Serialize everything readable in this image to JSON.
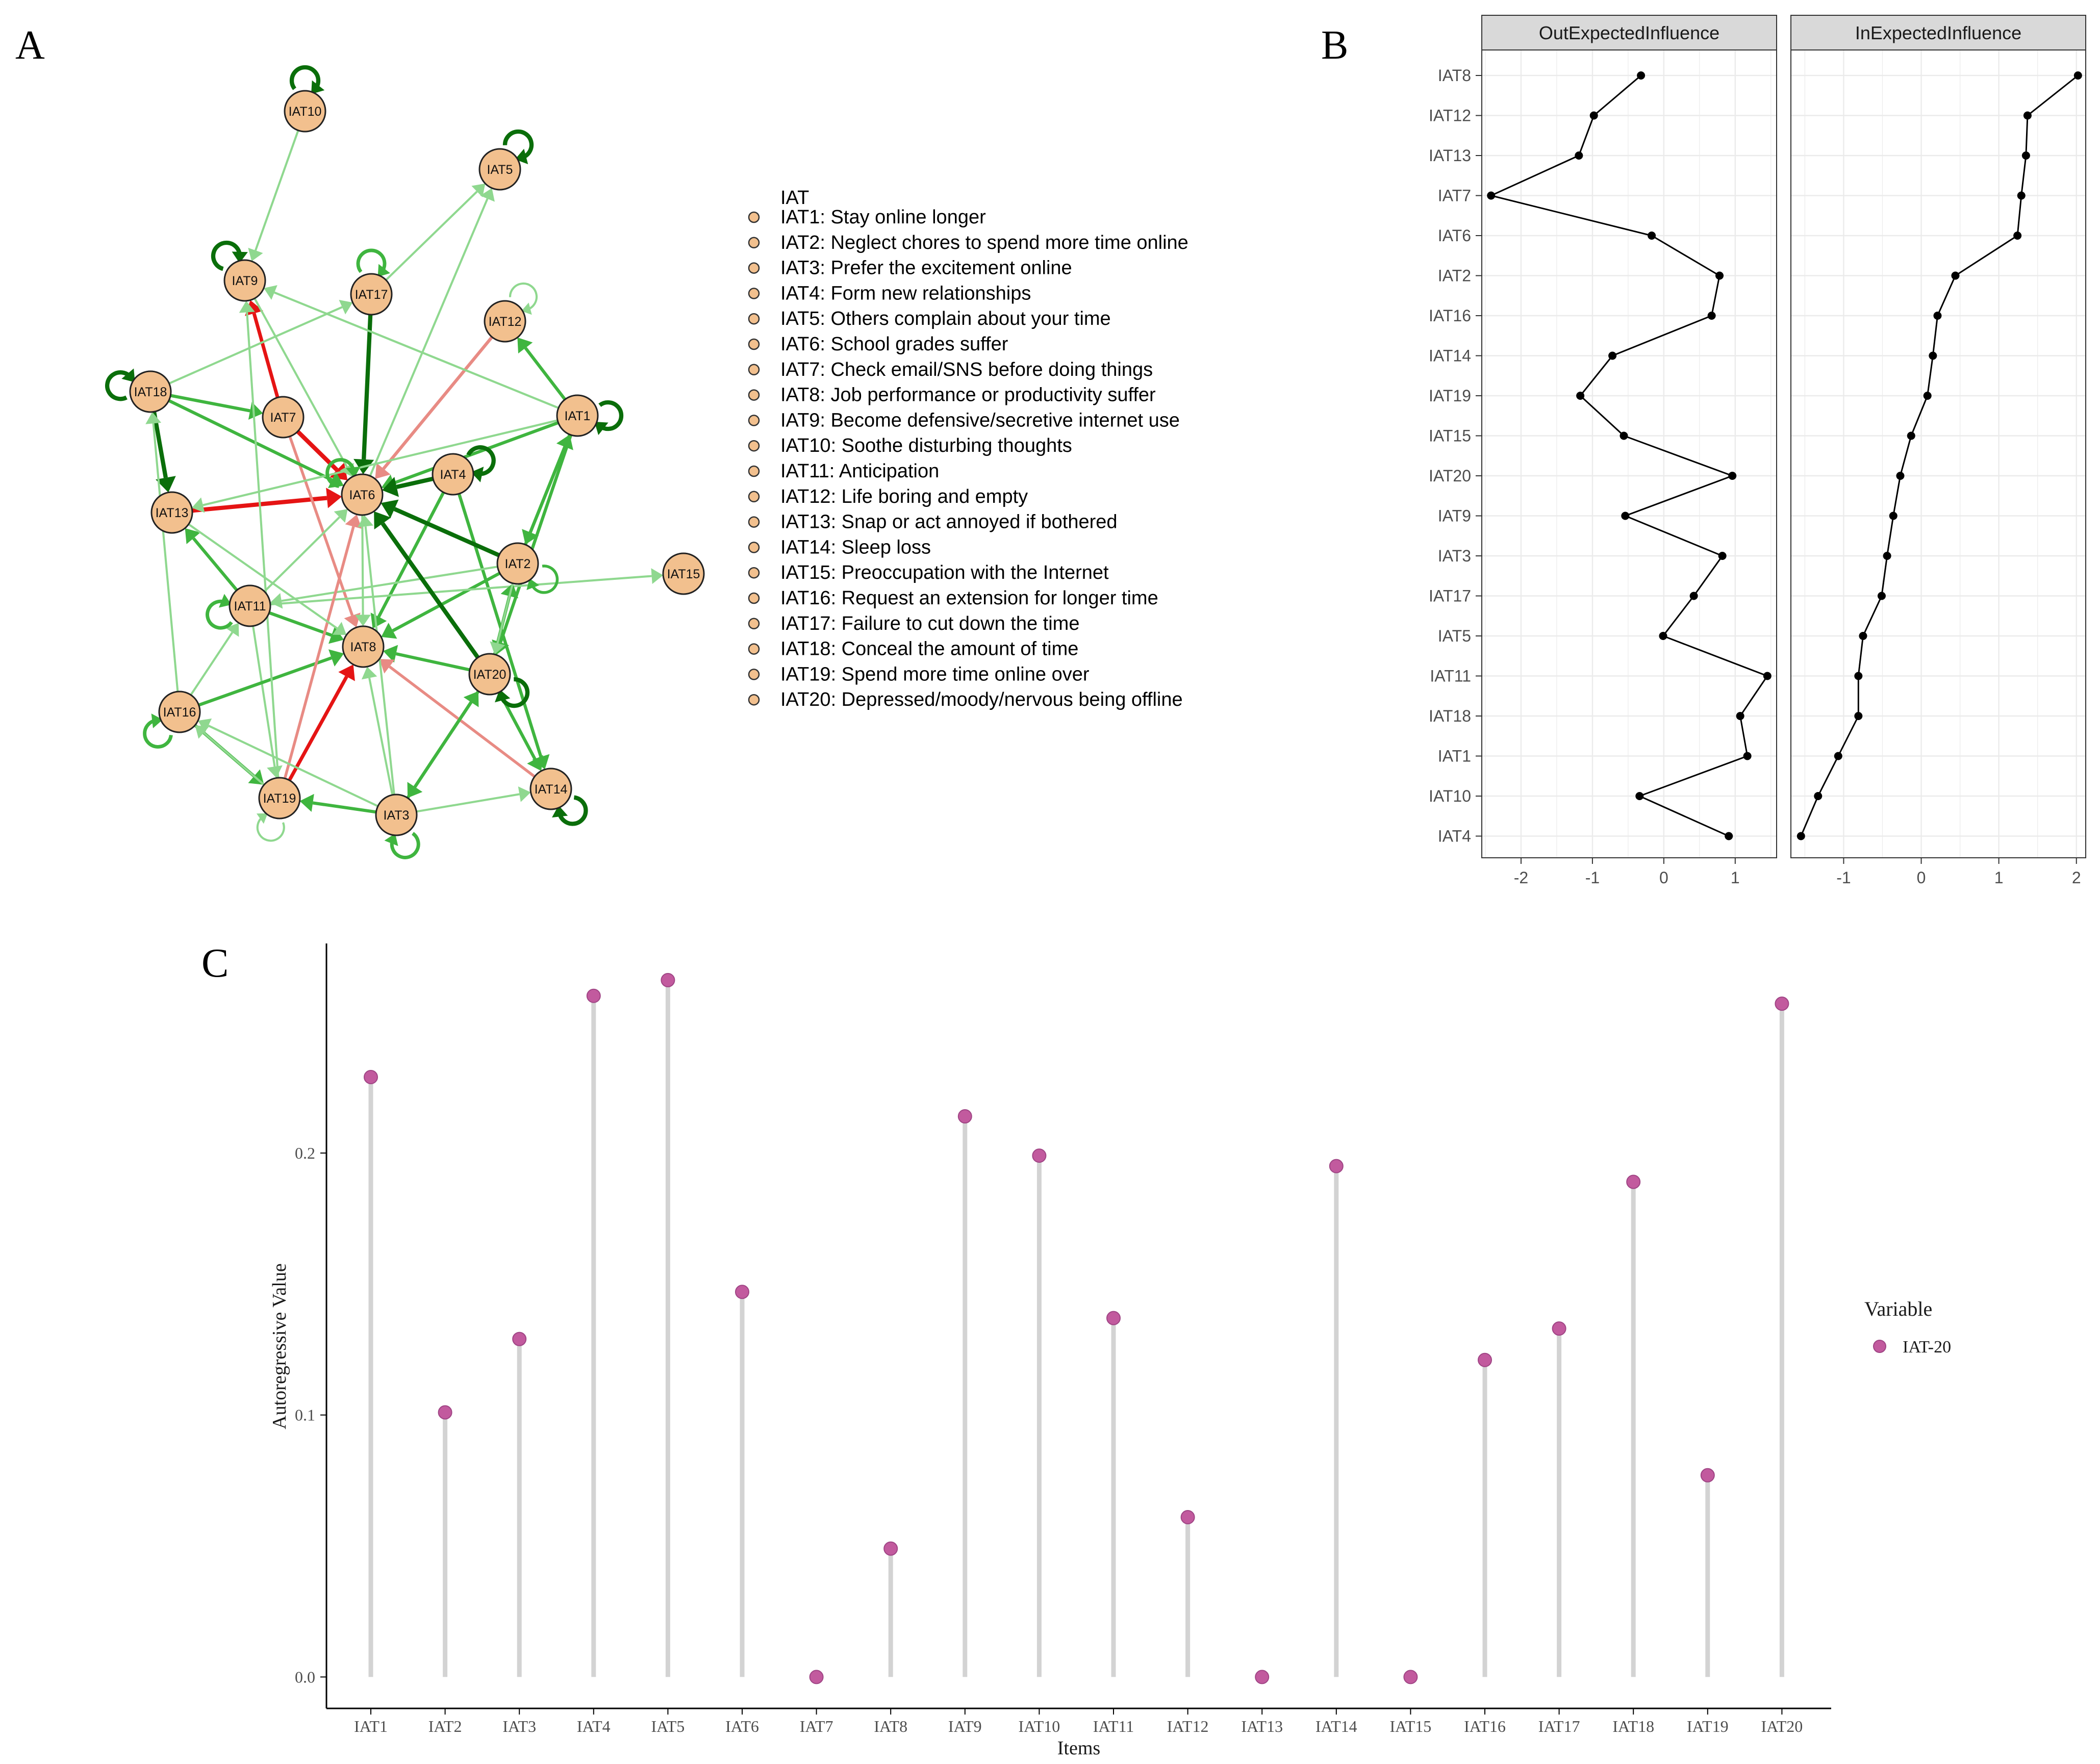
{
  "panels": {
    "a": "A",
    "b": "B",
    "c": "C"
  },
  "network": {
    "legend_title": "IAT",
    "legend_items": [
      "IAT1: Stay online longer",
      "IAT2: Neglect chores to spend more time online",
      "IAT3: Prefer the excitement online",
      "IAT4: Form new relationships",
      "IAT5: Others complain about your time",
      "IAT6: School grades suffer",
      "IAT7: Check email/SNS before doing things",
      "IAT8: Job performance or productivity suffer",
      "IAT9: Become defensive/secretive internet use",
      "IAT10: Soothe disturbing thoughts",
      "IAT11: Anticipation",
      "IAT12: Life boring and empty",
      "IAT13: Snap or act annoyed if bothered",
      "IAT14: Sleep loss",
      "IAT15: Preoccupation with the Internet",
      "IAT16: Request an extension for longer time",
      "IAT17: Failure to cut down the time",
      "IAT18: Conceal the amount of time",
      "IAT19: Spend more time online over",
      "IAT20: Depressed/moody/nervous being offline"
    ],
    "nodes": [
      "IAT1",
      "IAT2",
      "IAT3",
      "IAT4",
      "IAT5",
      "IAT6",
      "IAT7",
      "IAT8",
      "IAT9",
      "IAT10",
      "IAT11",
      "IAT12",
      "IAT13",
      "IAT14",
      "IAT15",
      "IAT16",
      "IAT17",
      "IAT18",
      "IAT19",
      "IAT20"
    ],
    "colors": {
      "node_fill": "#f2c08e",
      "positive_strong": "#0a6e0a",
      "positive_mid": "#3fb53f",
      "positive_weak": "#8fd88f",
      "negative_strong": "#e51414",
      "negative_weak": "#e88b84"
    },
    "edges": [
      {
        "from": "IAT10",
        "to": "IAT9",
        "weight": 0.3
      },
      {
        "from": "IAT7",
        "to": "IAT6",
        "weight": -0.9
      },
      {
        "from": "IAT13",
        "to": "IAT6",
        "weight": -0.9
      },
      {
        "from": "IAT7",
        "to": "IAT9",
        "weight": -0.7
      },
      {
        "from": "IAT7",
        "to": "IAT8",
        "weight": -0.5
      },
      {
        "from": "IAT17",
        "to": "IAT6",
        "weight": 0.9
      },
      {
        "from": "IAT12",
        "to": "IAT6",
        "weight": -0.6
      },
      {
        "from": "IAT18",
        "to": "IAT13",
        "weight": 0.9
      },
      {
        "from": "IAT18",
        "to": "IAT7",
        "weight": 0.6
      },
      {
        "from": "IAT18",
        "to": "IAT6",
        "weight": 0.6
      },
      {
        "from": "IAT18",
        "to": "IAT17",
        "weight": 0.3
      },
      {
        "from": "IAT1",
        "to": "IAT12",
        "weight": 0.6
      },
      {
        "from": "IAT1",
        "to": "IAT9",
        "weight": 0.3
      },
      {
        "from": "IAT1",
        "to": "IAT6",
        "weight": 0.6
      },
      {
        "from": "IAT1",
        "to": "IAT2",
        "weight": 0.6
      },
      {
        "from": "IAT2",
        "to": "IAT1",
        "weight": 0.6
      },
      {
        "from": "IAT1",
        "to": "IAT20",
        "weight": 0.6
      },
      {
        "from": "IAT4",
        "to": "IAT6",
        "weight": 0.9
      },
      {
        "from": "IAT4",
        "to": "IAT8",
        "weight": 0.6
      },
      {
        "from": "IAT4",
        "to": "IAT14",
        "weight": 0.6
      },
      {
        "from": "IAT17",
        "to": "IAT5",
        "weight": 0.3
      },
      {
        "from": "IAT6",
        "to": "IAT5",
        "weight": 0.3
      },
      {
        "from": "IAT2",
        "to": "IAT6",
        "weight": 0.9
      },
      {
        "from": "IAT2",
        "to": "IAT8",
        "weight": 0.6
      },
      {
        "from": "IAT2",
        "to": "IAT11",
        "weight": 0.3
      },
      {
        "from": "IAT11",
        "to": "IAT15",
        "weight": 0.3
      },
      {
        "from": "IAT20",
        "to": "IAT6",
        "weight": 0.9
      },
      {
        "from": "IAT20",
        "to": "IAT8",
        "weight": 0.6
      },
      {
        "from": "IAT20",
        "to": "IAT2",
        "weight": 0.6
      },
      {
        "from": "IAT20",
        "to": "IAT14",
        "weight": 0.6
      },
      {
        "from": "IAT20",
        "to": "IAT3",
        "weight": 0.6
      },
      {
        "from": "IAT14",
        "to": "IAT8",
        "weight": -0.5
      },
      {
        "from": "IAT11",
        "to": "IAT13",
        "weight": 0.6
      },
      {
        "from": "IAT11",
        "to": "IAT8",
        "weight": 0.6
      },
      {
        "from": "IAT11",
        "to": "IAT6",
        "weight": 0.3
      },
      {
        "from": "IAT11",
        "to": "IAT19",
        "weight": 0.3
      },
      {
        "from": "IAT16",
        "to": "IAT11",
        "weight": 0.3
      },
      {
        "from": "IAT16",
        "to": "IAT8",
        "weight": 0.6
      },
      {
        "from": "IAT16",
        "to": "IAT19",
        "weight": 0.6
      },
      {
        "from": "IAT16",
        "to": "IAT18",
        "weight": 0.3
      },
      {
        "from": "IAT19",
        "to": "IAT16",
        "weight": 0.3
      },
      {
        "from": "IAT19",
        "to": "IAT9",
        "weight": 0.3
      },
      {
        "from": "IAT19",
        "to": "IAT6",
        "weight": -0.5
      },
      {
        "from": "IAT19",
        "to": "IAT8",
        "weight": -0.7
      },
      {
        "from": "IAT3",
        "to": "IAT19",
        "weight": 0.6
      },
      {
        "from": "IAT3",
        "to": "IAT14",
        "weight": 0.3
      },
      {
        "from": "IAT3",
        "to": "IAT8",
        "weight": 0.3
      },
      {
        "from": "IAT3",
        "to": "IAT6",
        "weight": 0.3
      },
      {
        "from": "IAT3",
        "to": "IAT20",
        "weight": 0.6
      },
      {
        "from": "IAT3",
        "to": "IAT16",
        "weight": 0.3
      },
      {
        "from": "IAT13",
        "to": "IAT8",
        "weight": 0.3
      },
      {
        "from": "IAT6",
        "to": "IAT8",
        "weight": 0.3
      },
      {
        "from": "IAT9",
        "to": "IAT6",
        "weight": 0.3
      },
      {
        "from": "IAT1",
        "to": "IAT13",
        "weight": 0.3
      },
      {
        "from": "IAT2",
        "to": "IAT20",
        "weight": 0.3
      }
    ],
    "self_loops": [
      {
        "node": "IAT10",
        "weight": 0.9
      },
      {
        "node": "IAT5",
        "weight": 0.9
      },
      {
        "node": "IAT9",
        "weight": 0.9
      },
      {
        "node": "IAT17",
        "weight": 0.7
      },
      {
        "node": "IAT12",
        "weight": 0.3
      },
      {
        "node": "IAT18",
        "weight": 0.9
      },
      {
        "node": "IAT1",
        "weight": 0.9
      },
      {
        "node": "IAT4",
        "weight": 0.9
      },
      {
        "node": "IAT6",
        "weight": 0.7
      },
      {
        "node": "IAT2",
        "weight": 0.5
      },
      {
        "node": "IAT11",
        "weight": 0.7
      },
      {
        "node": "IAT20",
        "weight": 0.9
      },
      {
        "node": "IAT16",
        "weight": 0.7
      },
      {
        "node": "IAT14",
        "weight": 0.9
      },
      {
        "node": "IAT19",
        "weight": 0.3
      },
      {
        "node": "IAT3",
        "weight": 0.7
      }
    ]
  },
  "chart_data": [
    {
      "type": "line",
      "panel": "B",
      "facets": [
        "OutExpectedInfluence",
        "InExpectedInfluence"
      ],
      "categories": [
        "IAT8",
        "IAT12",
        "IAT13",
        "IAT7",
        "IAT6",
        "IAT2",
        "IAT16",
        "IAT14",
        "IAT19",
        "IAT15",
        "IAT20",
        "IAT9",
        "IAT3",
        "IAT17",
        "IAT5",
        "IAT11",
        "IAT18",
        "IAT1",
        "IAT10",
        "IAT4"
      ],
      "series": [
        {
          "name": "OutExpectedInfluence",
          "values": [
            -0.32,
            -0.98,
            -1.19,
            -2.42,
            -0.17,
            0.78,
            0.67,
            -0.72,
            -1.17,
            -0.56,
            0.96,
            -0.54,
            0.82,
            0.42,
            -0.01,
            1.45,
            1.07,
            1.17,
            -0.34,
            0.91
          ],
          "xlim": [
            -2.55,
            1.58
          ],
          "xticks": [
            -2,
            -1,
            0,
            1
          ]
        },
        {
          "name": "InExpectedInfluence",
          "values": [
            2.02,
            1.37,
            1.35,
            1.29,
            1.24,
            0.44,
            0.21,
            0.15,
            0.08,
            -0.13,
            -0.27,
            -0.36,
            -0.44,
            -0.51,
            -0.75,
            -0.81,
            -0.81,
            -1.07,
            -1.33,
            -1.55
          ],
          "xlim": [
            -1.68,
            2.12
          ],
          "xticks": [
            -1,
            0,
            1,
            2
          ]
        }
      ]
    },
    {
      "type": "scatter",
      "panel": "C",
      "categories": [
        "IAT1",
        "IAT2",
        "IAT3",
        "IAT4",
        "IAT5",
        "IAT6",
        "IAT7",
        "IAT8",
        "IAT9",
        "IAT10",
        "IAT11",
        "IAT12",
        "IAT13",
        "IAT14",
        "IAT15",
        "IAT16",
        "IAT17",
        "IAT18",
        "IAT19",
        "IAT20"
      ],
      "series": [
        {
          "name": "IAT-20",
          "values": [
            0.229,
            0.101,
            0.129,
            0.26,
            0.266,
            0.147,
            0.0,
            0.049,
            0.214,
            0.199,
            0.137,
            0.061,
            0.0,
            0.195,
            0.0,
            0.121,
            0.133,
            0.189,
            0.077,
            0.257
          ]
        }
      ],
      "xlabel": "Items",
      "ylabel": "Autoregressive Value",
      "ylim": [
        -0.012,
        0.28
      ],
      "yticks": [
        "0.0",
        "0.1",
        "0.2"
      ],
      "legend_title": "Variable",
      "legend_position": "right",
      "colors": {
        "point": "#c25a9e",
        "stem": "#d3d3d3"
      }
    }
  ]
}
